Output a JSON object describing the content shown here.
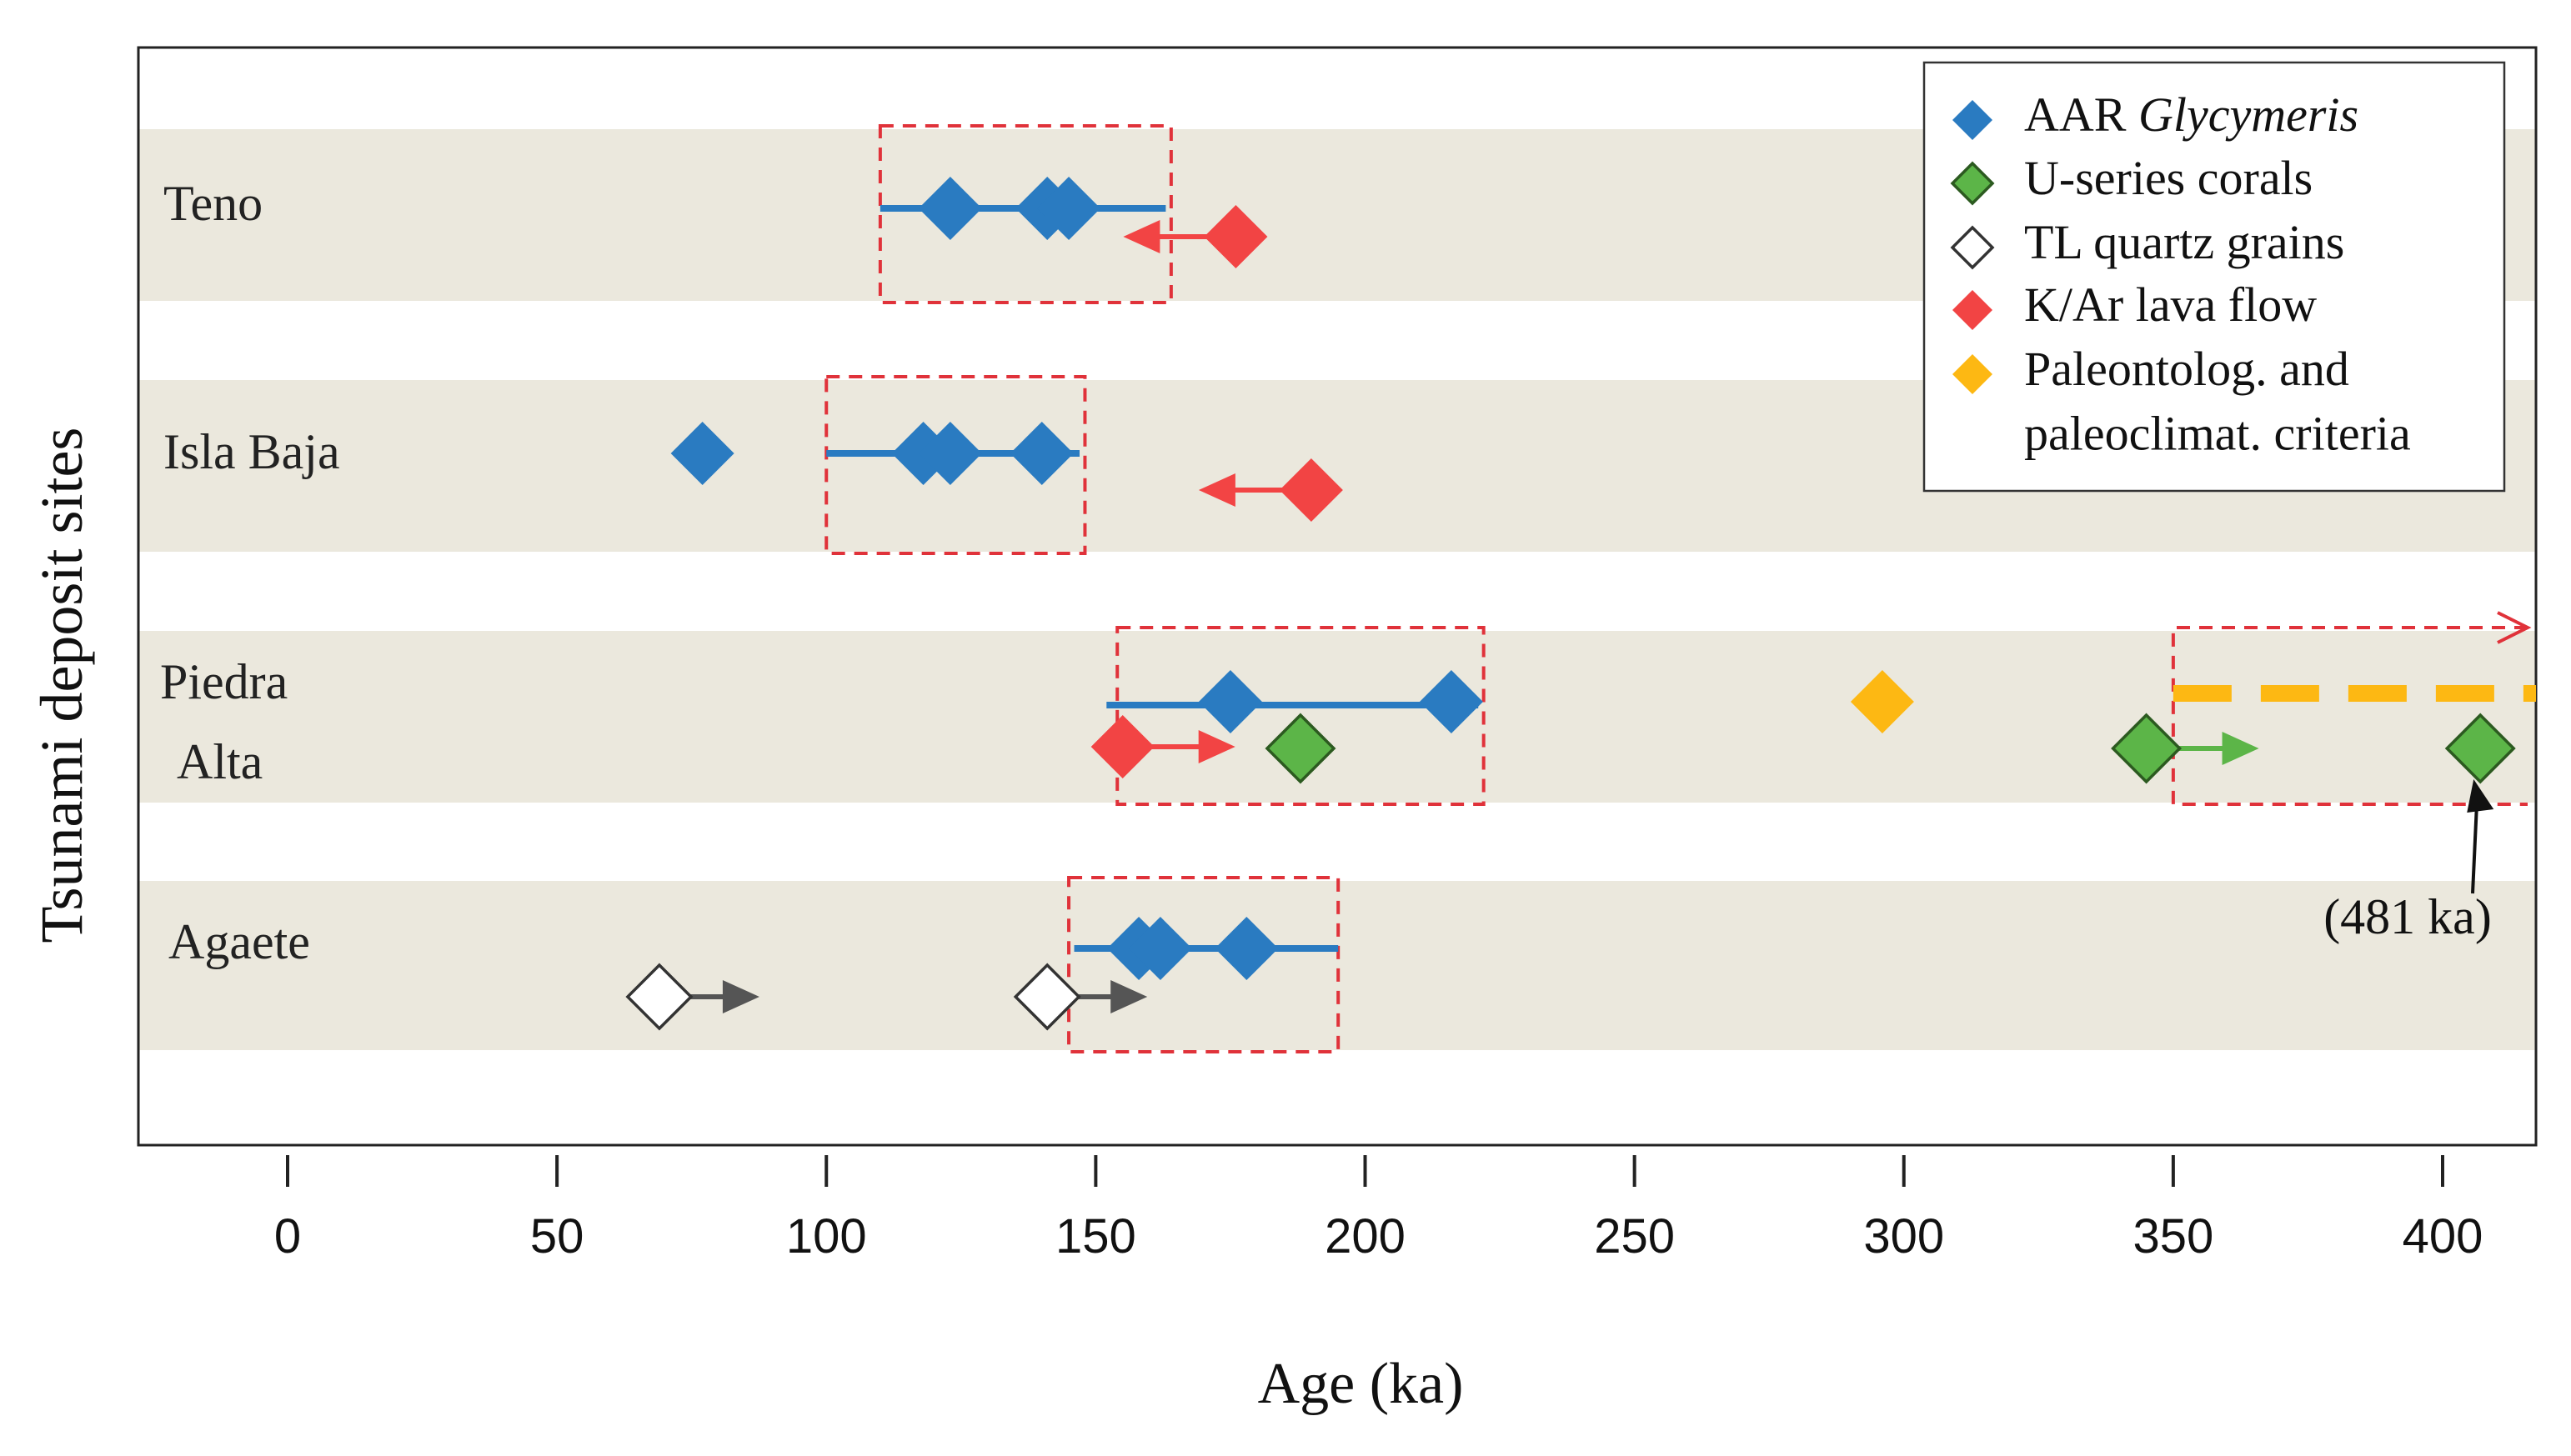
{
  "chart_data": {
    "type": "scatter",
    "xlabel": "Age (ka)",
    "ylabel": "Tsunami deposit sites",
    "xlim": [
      -27,
      412
    ],
    "x_ticks": [
      0,
      50,
      100,
      150,
      200,
      250,
      300,
      350,
      400
    ],
    "x_tick_labels": [
      "0",
      "50",
      "100",
      "150",
      "200",
      "250",
      "300",
      "350",
      "400"
    ],
    "sites": [
      {
        "name": "Teno",
        "label_lines": [
          "Teno"
        ]
      },
      {
        "name": "Isla Baja",
        "label_lines": [
          "Isla Baja"
        ]
      },
      {
        "name": "Piedra Alta",
        "label_lines": [
          "Piedra",
          "Alta"
        ]
      },
      {
        "name": "Agaete",
        "label_lines": [
          "Agaete"
        ]
      }
    ],
    "legend": {
      "position": "top-right",
      "entries": [
        {
          "key": "aar",
          "text": "AAR ",
          "italic_text": "Glycymeris",
          "color": "#2a7bc1",
          "filled": true
        },
        {
          "key": "useries",
          "text": "U-series corals",
          "color": "#5cb548",
          "filled": true,
          "outlined": true
        },
        {
          "key": "tl",
          "text": "TL quartz grains",
          "color": "#ffffff",
          "filled": false
        },
        {
          "key": "kar",
          "text": "K/Ar lava flow",
          "color": "#f24444",
          "filled": true
        },
        {
          "key": "paleo",
          "text": "Paleontolog. and",
          "text2": "paleoclimat. criteria",
          "color": "#fdb813",
          "filled": true
        }
      ]
    },
    "series": [
      {
        "name": "AAR Glycymeris",
        "key": "aar",
        "color": "#2a7bc1",
        "points": [
          {
            "site": "Teno",
            "x": 123
          },
          {
            "site": "Teno",
            "x": 141
          },
          {
            "site": "Teno",
            "x": 145
          },
          {
            "site": "Isla Baja",
            "x": 77
          },
          {
            "site": "Isla Baja",
            "x": 118
          },
          {
            "site": "Isla Baja",
            "x": 123
          },
          {
            "site": "Isla Baja",
            "x": 140
          },
          {
            "site": "Piedra Alta",
            "x": 175
          },
          {
            "site": "Piedra Alta",
            "x": 216
          },
          {
            "site": "Agaete",
            "x": 158
          },
          {
            "site": "Agaete",
            "x": 162
          },
          {
            "site": "Agaete",
            "x": 178
          }
        ]
      },
      {
        "name": "U-series corals",
        "key": "useries",
        "color": "#5cb548",
        "points": [
          {
            "site": "Piedra Alta",
            "x": 188
          },
          {
            "site": "Piedra Alta",
            "x": 345,
            "arrow": "right"
          },
          {
            "site": "Piedra Alta",
            "x": 481,
            "plotted_at": 407
          }
        ]
      },
      {
        "name": "TL quartz grains",
        "key": "tl",
        "color": "#ffffff",
        "points": [
          {
            "site": "Agaete",
            "x": 69,
            "arrow": "right"
          },
          {
            "site": "Agaete",
            "x": 141,
            "arrow": "right"
          }
        ]
      },
      {
        "name": "K/Ar lava flow",
        "key": "kar",
        "color": "#f24444",
        "points": [
          {
            "site": "Teno",
            "x": 176,
            "arrow": "left"
          },
          {
            "site": "Isla Baja",
            "x": 190,
            "arrow": "left"
          },
          {
            "site": "Piedra Alta",
            "x": 155,
            "arrow": "right"
          }
        ]
      },
      {
        "name": "Paleontolog. and paleoclimat. criteria",
        "key": "paleo",
        "color": "#fdb813",
        "points": [
          {
            "site": "Piedra Alta",
            "x": 296
          }
        ]
      }
    ],
    "aar_ranges": [
      {
        "site": "Teno",
        "from": 110,
        "to": 163
      },
      {
        "site": "Isla Baja",
        "from": 100,
        "to": 147
      },
      {
        "site": "Piedra Alta",
        "from": 152,
        "to": 221
      },
      {
        "site": "Agaete",
        "from": 146,
        "to": 195
      }
    ],
    "age_boxes": [
      {
        "site": "Teno",
        "from": 110,
        "to": 164
      },
      {
        "site": "Isla Baja",
        "from": 100,
        "to": 148
      },
      {
        "site": "Piedra Alta",
        "from": 154,
        "to": 222
      },
      {
        "site": "Agaete",
        "from": 145,
        "to": 195
      },
      {
        "site": "Piedra Alta",
        "from": 350,
        "to": 412,
        "open_ended": true
      }
    ],
    "paleo_range": {
      "site": "Piedra Alta",
      "from": 350,
      "to": 412,
      "open_ended": true
    },
    "annotation": {
      "text": "(481 ka)",
      "points_to_x": 407,
      "site": "Piedra Alta"
    },
    "colors": {
      "band": "#ebe8dd",
      "aar": "#2a7bc1",
      "useries": "#5cb548",
      "kar": "#f24444",
      "paleo": "#fdb813",
      "box": "#e0323a",
      "tl_arrow": "#555555",
      "axis": "#222222"
    }
  }
}
